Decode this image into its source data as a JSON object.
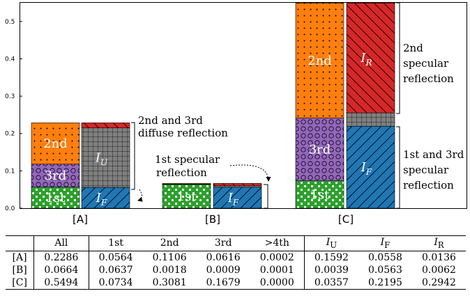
{
  "chart_data": {
    "type": "bar",
    "ylim": [
      0,
      0.55
    ],
    "yticks": [
      0.0,
      0.1,
      0.2,
      0.3,
      0.4,
      0.5
    ],
    "categories": [
      "[A]",
      "[B]",
      "[C]"
    ],
    "diffuse_stack": {
      "segments": [
        "1st",
        "3rd",
        "2nd"
      ],
      "values": {
        "[A]": [
          0.0564,
          0.0616,
          0.1106
        ],
        "[B]": [
          0.0637,
          0.0009,
          0.0018
        ],
        "[C]": [
          0.0734,
          0.1679,
          0.3081
        ]
      }
    },
    "specular_stack": {
      "segments": [
        "I_F",
        "I_U",
        "I_R"
      ],
      "values": {
        "[A]": [
          0.0558,
          0.1592,
          0.0136
        ],
        "[B]": [
          0.0563,
          0.0039,
          0.0062
        ],
        "[C]": [
          0.2195,
          0.0357,
          0.2942
        ]
      }
    },
    "segment_labels": {
      "1st": "1st",
      "2nd": "2nd",
      "3rd": "3rd",
      "I_F": "F",
      "I_U": "U",
      "I_R": "R",
      "I": "I"
    },
    "annotations": {
      "a_diffuse_1": "2nd and 3rd",
      "a_diffuse_2": "diffuse reflection",
      "b_spec_1": "1st specular",
      "b_spec_2": "reflection",
      "c_2nd_1": "2nd",
      "c_2nd_2": "specular",
      "c_2nd_3": "reflection",
      "c_13_1": "1st and 3rd",
      "c_13_2": "specular",
      "c_13_3": "reflection"
    },
    "colors": {
      "1st": "#2ca02c",
      "2nd": "#ff7f0e",
      "3rd": "#9467bd",
      "I_F": "#1f77b4",
      "I_U": "#7f7f7f",
      "I_R": "#d62728"
    }
  },
  "table": {
    "headers": [
      "",
      "All",
      "1st",
      "2nd",
      "3rd",
      ">4th",
      "I",
      "I",
      "I"
    ],
    "header_subs": [
      "",
      "",
      "",
      "",
      "",
      "",
      "U",
      "F",
      "R"
    ],
    "rows": [
      [
        "[A]",
        "0.2286",
        "0.0564",
        "0.1106",
        "0.0616",
        "0.0002",
        "0.1592",
        "0.0558",
        "0.0136"
      ],
      [
        "[B]",
        "0.0664",
        "0.0637",
        "0.0018",
        "0.0009",
        "0.0001",
        "0.0039",
        "0.0563",
        "0.0062"
      ],
      [
        "[C]",
        "0.5494",
        "0.0734",
        "0.3081",
        "0.1679",
        "0.0000",
        "0.0357",
        "0.2195",
        "0.2942"
      ]
    ]
  }
}
